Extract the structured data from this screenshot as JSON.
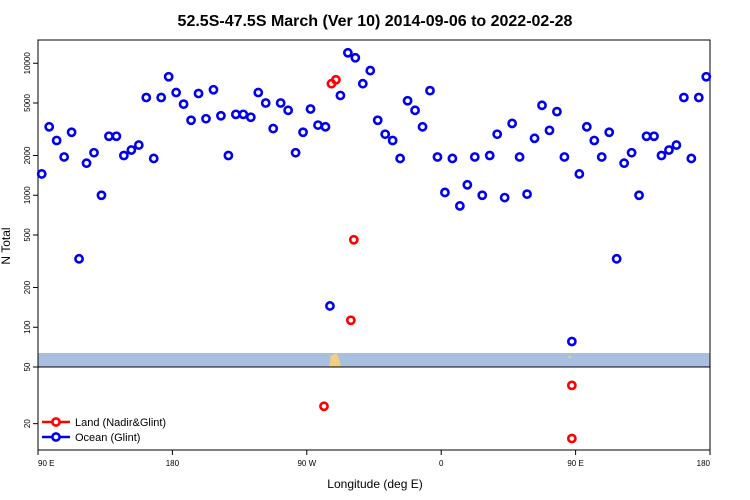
{
  "chart_data": {
    "type": "scatter",
    "title": "52.5S-47.5S March (Ver 10)   2014-09-06 to 2022-02-28",
    "xlabel": "Longitude (deg E)",
    "ylabel": "N Total",
    "x_ticks": [
      "90 E",
      "180",
      "90 W",
      "0",
      "90 E",
      "180"
    ],
    "y_ticks_main": [
      "10000",
      "5000",
      "2000",
      "1000",
      "500",
      "200",
      "100",
      "50"
    ],
    "y_ticks_lower": [
      "20"
    ],
    "y_scale": "log",
    "x_range_deg_e_unwrapped": [
      90,
      540
    ],
    "y_range_main": [
      50,
      15000
    ],
    "legend": {
      "position": "bottom-left",
      "entries": [
        {
          "label": "Land (Nadir&Glint)",
          "color": "#ff0000"
        },
        {
          "label": "Ocean (Glint)",
          "color": "#0000ee"
        }
      ]
    },
    "land_strip": {
      "ocean_color": "#a8bfe0",
      "land_color": "#f0d080"
    },
    "series": [
      {
        "name": "Ocean (Glint)",
        "color": "#0000ee",
        "points": [
          [
            92.5,
            1450
          ],
          [
            97.5,
            3300
          ],
          [
            102.5,
            2600
          ],
          [
            107.5,
            1950
          ],
          [
            112.5,
            3000
          ],
          [
            117.5,
            330
          ],
          [
            122.5,
            1750
          ],
          [
            127.5,
            2100
          ],
          [
            132.5,
            1000
          ],
          [
            137.5,
            2800
          ],
          [
            142.5,
            2800
          ],
          [
            147.5,
            2000
          ],
          [
            152.5,
            2200
          ],
          [
            157.5,
            2400
          ],
          [
            162.5,
            5500
          ],
          [
            167.5,
            1900
          ],
          [
            172.5,
            5500
          ],
          [
            177.5,
            7900
          ],
          [
            182.5,
            6000
          ],
          [
            187.5,
            4900
          ],
          [
            192.5,
            3700
          ],
          [
            197.5,
            5900
          ],
          [
            202.5,
            3800
          ],
          [
            207.5,
            6300
          ],
          [
            212.5,
            4000
          ],
          [
            217.5,
            2000
          ],
          [
            222.5,
            4100
          ],
          [
            227.5,
            4100
          ],
          [
            232.5,
            3900
          ],
          [
            237.5,
            6000
          ],
          [
            242.5,
            5000
          ],
          [
            247.5,
            3200
          ],
          [
            252.5,
            5000
          ],
          [
            257.5,
            4400
          ],
          [
            262.5,
            2100
          ],
          [
            267.5,
            3000
          ],
          [
            272.5,
            4500
          ],
          [
            277.5,
            3400
          ],
          [
            282.5,
            3300
          ],
          [
            285.5,
            145
          ],
          [
            292.5,
            5700
          ],
          [
            297.5,
            12000
          ],
          [
            302.5,
            11000
          ],
          [
            307.5,
            7000
          ],
          [
            312.5,
            8800
          ],
          [
            317.5,
            3700
          ],
          [
            322.5,
            2900
          ],
          [
            327.5,
            2600
          ],
          [
            332.5,
            1900
          ],
          [
            337.5,
            5200
          ],
          [
            342.5,
            4400
          ],
          [
            347.5,
            3300
          ],
          [
            352.5,
            6200
          ],
          [
            357.5,
            1950
          ],
          [
            362.5,
            1050
          ],
          [
            367.5,
            1900
          ],
          [
            372.5,
            830
          ],
          [
            377.5,
            1200
          ],
          [
            382.5,
            1950
          ],
          [
            387.5,
            1000
          ],
          [
            392.5,
            2000
          ],
          [
            397.5,
            2900
          ],
          [
            402.5,
            960
          ],
          [
            407.5,
            3500
          ],
          [
            412.5,
            1950
          ],
          [
            417.5,
            1020
          ],
          [
            422.5,
            2700
          ],
          [
            427.5,
            4800
          ],
          [
            432.5,
            3100
          ],
          [
            437.5,
            4300
          ],
          [
            442.5,
            1950
          ],
          [
            447.5,
            78
          ],
          [
            452.5,
            1450
          ],
          [
            457.5,
            3300
          ],
          [
            462.5,
            2600
          ],
          [
            467.5,
            1950
          ],
          [
            472.5,
            3000
          ],
          [
            477.5,
            330
          ],
          [
            482.5,
            1750
          ],
          [
            487.5,
            2100
          ],
          [
            492.5,
            1000
          ],
          [
            497.5,
            2800
          ],
          [
            502.5,
            2800
          ],
          [
            507.5,
            2000
          ],
          [
            512.5,
            2200
          ],
          [
            517.5,
            2400
          ],
          [
            522.5,
            5500
          ],
          [
            527.5,
            1900
          ],
          [
            532.5,
            5500
          ],
          [
            537.5,
            7900
          ]
        ]
      },
      {
        "name": "Land (Nadir&Glint)",
        "color": "#ff0000",
        "points": [
          [
            286.5,
            7000
          ],
          [
            289.5,
            7500
          ],
          [
            299.5,
            113
          ],
          [
            301.5,
            460
          ]
        ]
      }
    ],
    "lower_panel": {
      "y_ticks": [
        "20"
      ],
      "y_scale": "log",
      "y_range": [
        12,
        60
      ],
      "series": [
        {
          "name": "Land (Nadir&Glint)",
          "color": "#ff0000",
          "points": [
            [
              281.5,
              28
            ],
            [
              447.5,
              42
            ],
            [
              447.5,
              15
            ]
          ]
        }
      ]
    }
  }
}
